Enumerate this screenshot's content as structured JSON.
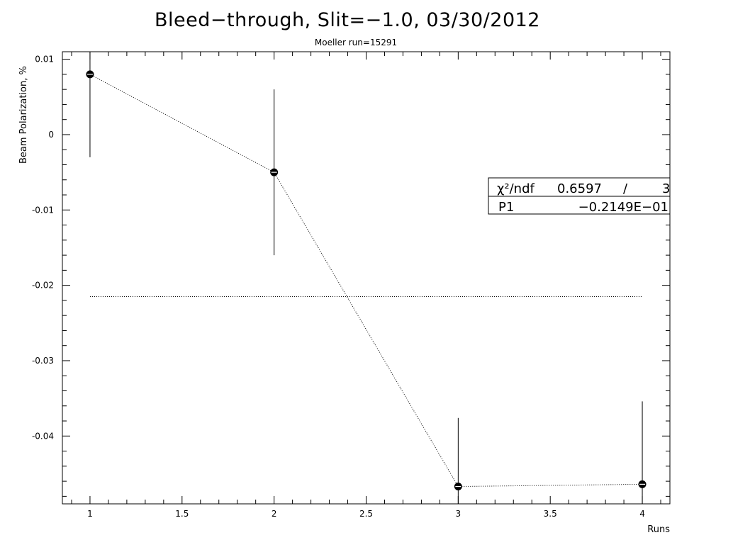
{
  "chart_data": {
    "type": "scatter",
    "title": "Bleed−through, Slit=−1.0, 03/30/2012",
    "subtitle": "Moeller run=15291",
    "xlabel": "Runs",
    "ylabel": "Beam Polarization, %",
    "xlim": [
      0.85,
      4.15
    ],
    "ylim": [
      -0.049,
      0.011
    ],
    "x_ticks": [
      1,
      1.5,
      2,
      2.5,
      3,
      3.5,
      4
    ],
    "x_tick_labels": [
      "1",
      "1.5",
      "2",
      "2.5",
      "3",
      "3.5",
      "4"
    ],
    "y_ticks": [
      0.01,
      0,
      -0.01,
      -0.02,
      -0.03,
      -0.04
    ],
    "y_tick_labels": [
      "0.01",
      "0",
      "-0.01",
      "-0.02",
      "-0.03",
      "-0.04"
    ],
    "series": [
      {
        "x": [
          1,
          2,
          3,
          4
        ],
        "y": [
          0.008,
          -0.005,
          -0.0467,
          -0.0464
        ],
        "y_err_low": [
          0.011,
          0.011,
          0.011,
          0.011
        ],
        "y_err_high": [
          0.011,
          0.011,
          0.0091,
          0.011
        ]
      }
    ],
    "fit": {
      "function": "constant",
      "value": -0.02149
    },
    "stats_box": {
      "position": "right",
      "rows": [
        {
          "label": "χ²/ndf",
          "value": "0.6597",
          "sep": "/",
          "extra": "3"
        },
        {
          "label": "P1",
          "value": "−0.2149E−01"
        }
      ]
    },
    "grid": false
  }
}
